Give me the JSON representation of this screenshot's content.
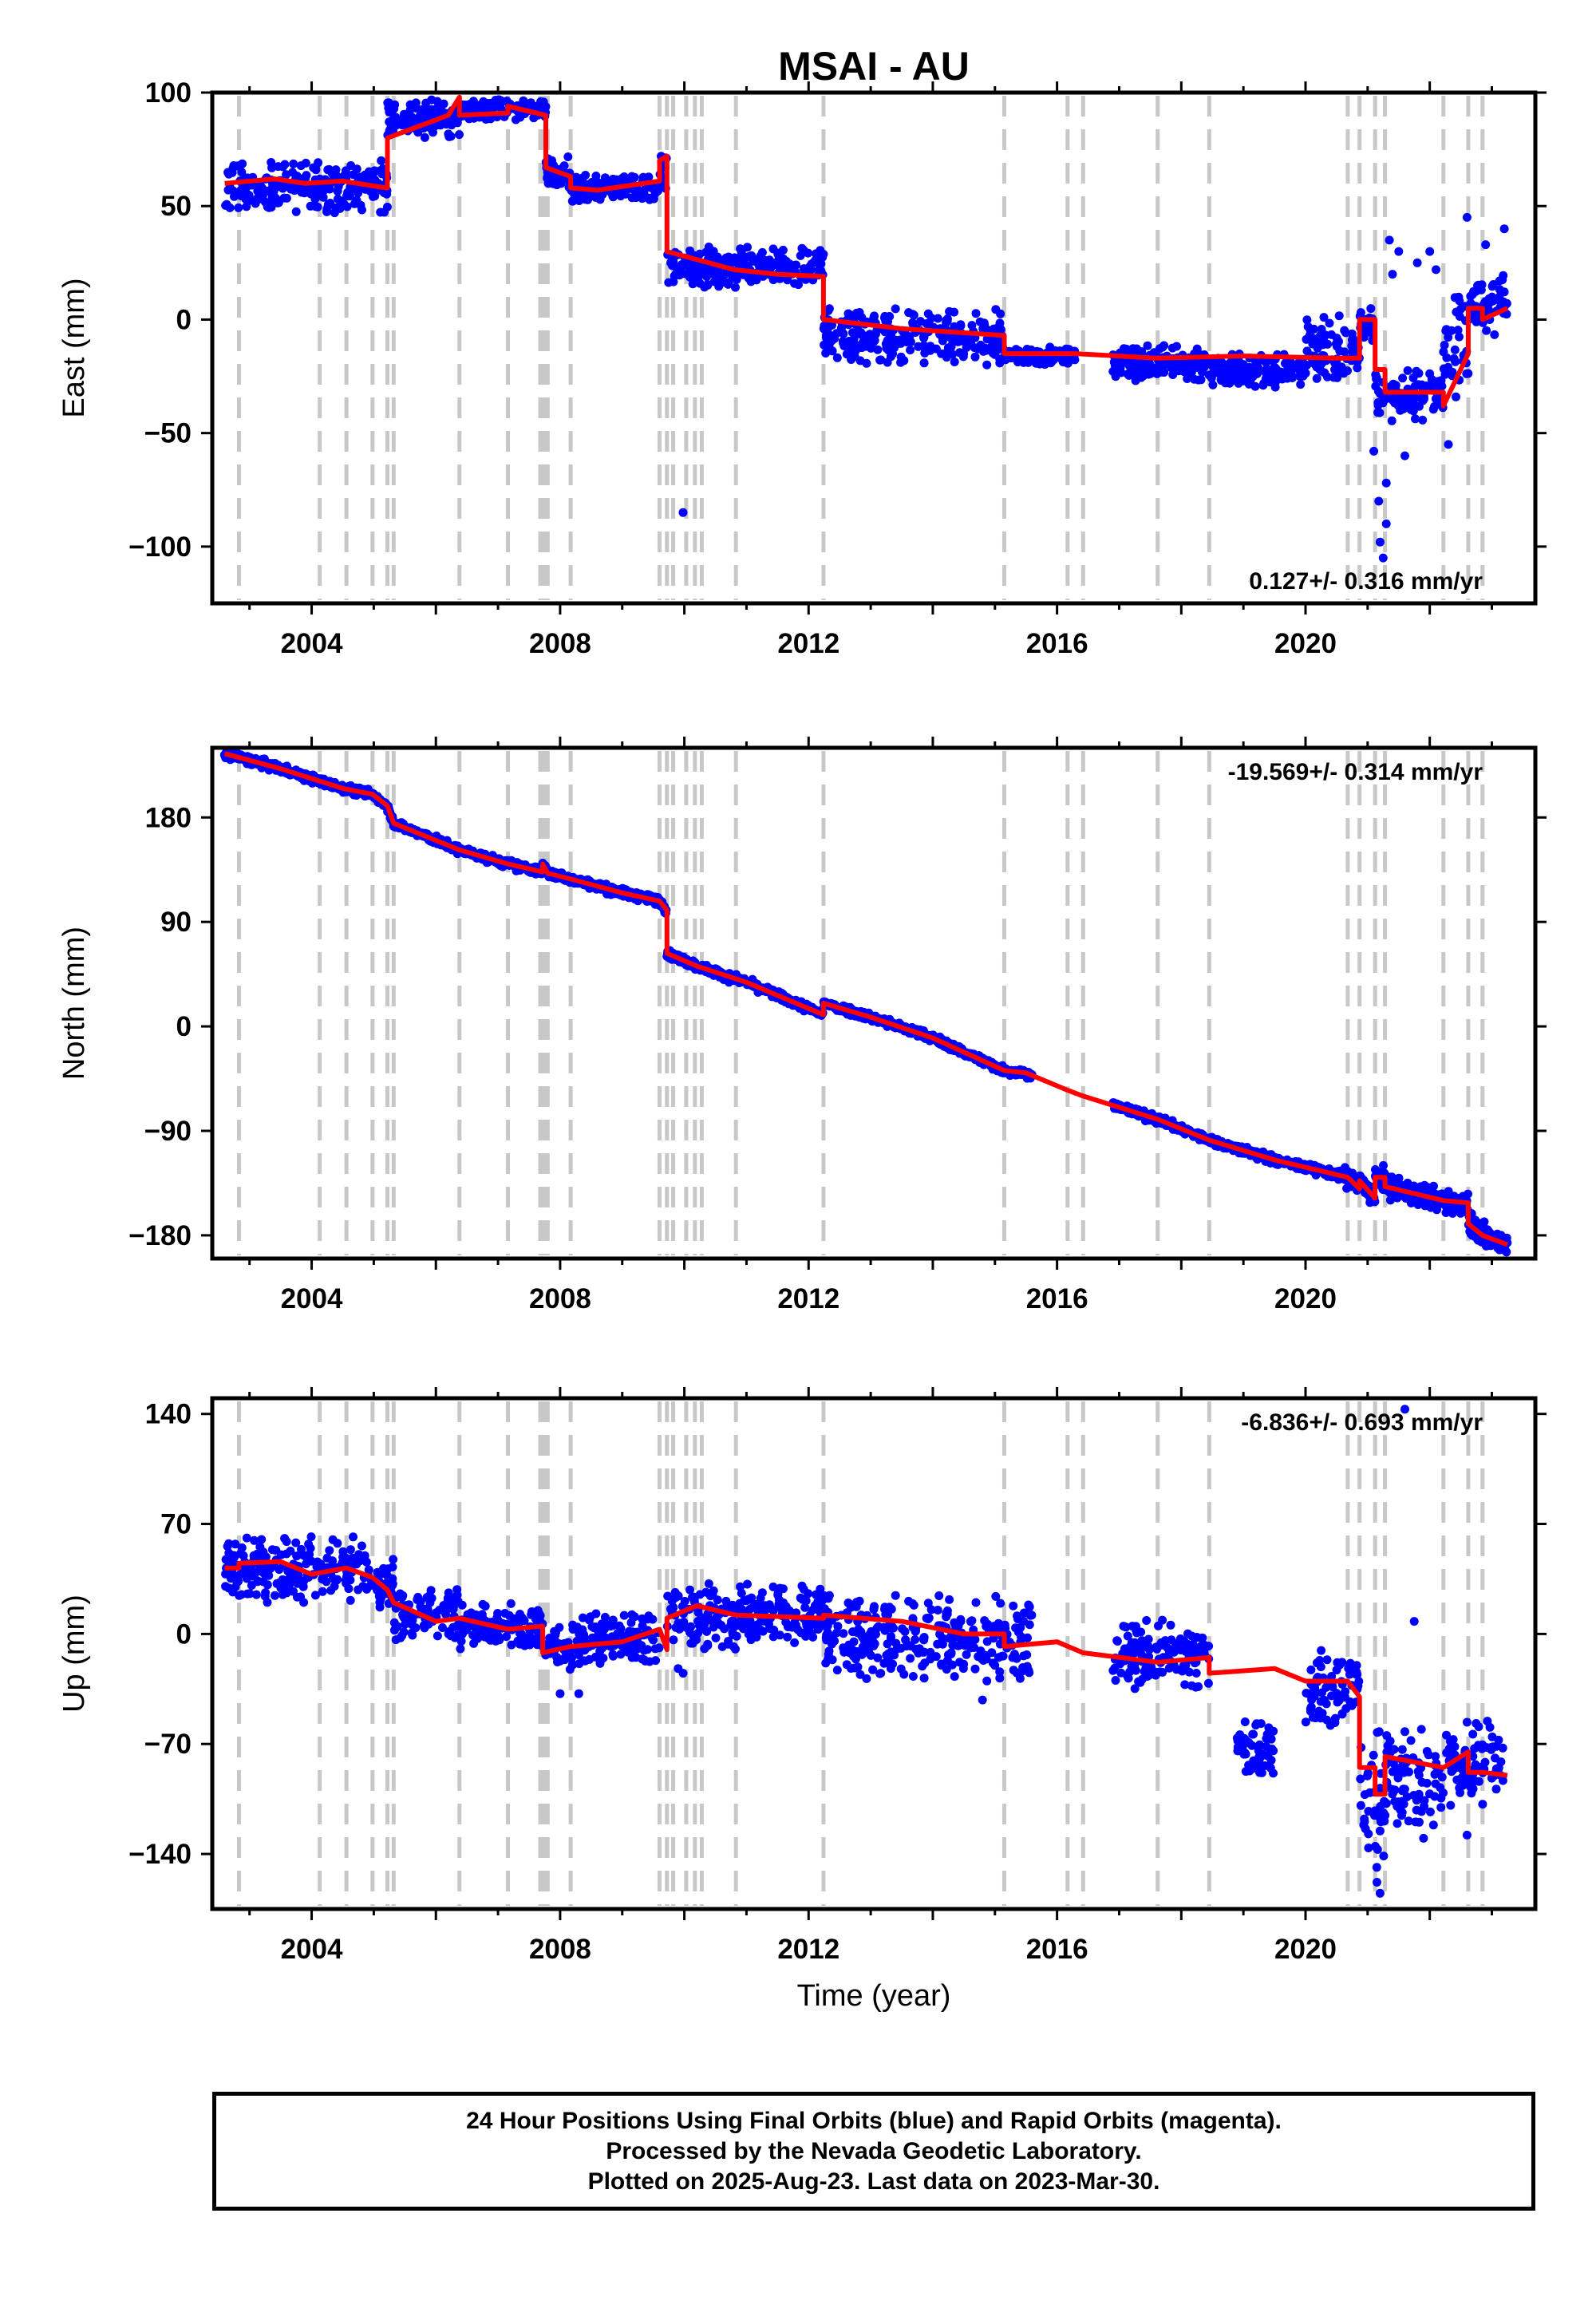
{
  "chart_data": {
    "type": "scatter",
    "title": "MSAI - AU",
    "xlabel": "Time (year)",
    "x_tick_labels": [
      "2004",
      "2008",
      "2012",
      "2016",
      "2020"
    ],
    "xlim": [
      2002.4,
      2023.7
    ],
    "time_span": [
      2002.6,
      2023.25
    ],
    "event_lines": [
      2002.83,
      2004.13,
      2004.56,
      2004.98,
      2005.22,
      2005.32,
      2006.38,
      2007.16,
      2007.68,
      2007.72,
      2007.77,
      2007.8,
      2008.17,
      2009.6,
      2009.72,
      2009.82,
      2010.03,
      2010.17,
      2010.28,
      2010.83,
      2012.24,
      2015.15,
      2016.17,
      2016.42,
      2017.62,
      2018.45,
      2020.68,
      2020.87,
      2021.12,
      2021.28,
      2022.22,
      2022.62,
      2022.85
    ],
    "colors": {
      "final_orbits": "#0000ff",
      "model": "#ff0000",
      "event_line": "#c8c8c8",
      "frame": "#000000"
    },
    "panels": [
      {
        "id": "east",
        "ylabel": "East (mm)",
        "ylim": [
          -125,
          100
        ],
        "ytick_values": [
          100,
          50,
          0,
          -50,
          -100
        ],
        "ytick_labels": [
          "100",
          "50",
          "0",
          "−50",
          "−100"
        ],
        "rate_label": "0.127+/- 0.316 mm/yr",
        "rate_position": "bottom-right",
        "model_line": [
          [
            2002.6,
            60
          ],
          [
            2003.4,
            62
          ],
          [
            2003.9,
            60
          ],
          [
            2004.5,
            61
          ],
          [
            2005.2,
            58
          ],
          [
            2005.22,
            58
          ],
          [
            2005.22,
            80
          ],
          [
            2006.2,
            90
          ],
          [
            2006.38,
            98
          ],
          [
            2006.38,
            90
          ],
          [
            2007.16,
            91
          ],
          [
            2007.16,
            94
          ],
          [
            2007.77,
            90
          ],
          [
            2007.77,
            67
          ],
          [
            2008.17,
            63
          ],
          [
            2008.17,
            58
          ],
          [
            2008.6,
            57
          ],
          [
            2009.6,
            61
          ],
          [
            2009.6,
            70
          ],
          [
            2009.72,
            72
          ],
          [
            2009.72,
            30
          ],
          [
            2010.8,
            22
          ],
          [
            2011.5,
            20
          ],
          [
            2012.24,
            19
          ],
          [
            2012.24,
            0
          ],
          [
            2013.5,
            -4
          ],
          [
            2015.15,
            -7
          ],
          [
            2015.15,
            -15
          ],
          [
            2016.3,
            -15
          ],
          [
            2017.6,
            -17
          ],
          [
            2019.0,
            -16
          ],
          [
            2020.5,
            -17
          ],
          [
            2020.87,
            -17
          ],
          [
            2020.87,
            0
          ],
          [
            2021.12,
            0
          ],
          [
            2021.12,
            -22
          ],
          [
            2021.28,
            -22
          ],
          [
            2021.28,
            -32
          ],
          [
            2022.22,
            -32
          ],
          [
            2022.22,
            -38
          ],
          [
            2022.62,
            -15
          ],
          [
            2022.62,
            5
          ],
          [
            2022.85,
            5
          ],
          [
            2022.85,
            0
          ],
          [
            2023.25,
            5
          ]
        ],
        "scatter_ranges": [
          [
            2002.6,
            2005.22,
            47,
            70
          ],
          [
            2005.22,
            2006.38,
            80,
            97
          ],
          [
            2006.38,
            2007.77,
            88,
            97
          ],
          [
            2007.77,
            2008.17,
            58,
            72
          ],
          [
            2008.17,
            2009.6,
            52,
            64
          ],
          [
            2009.6,
            2009.72,
            56,
            74
          ],
          [
            2009.72,
            2012.24,
            14,
            32
          ],
          [
            2012.24,
            2015.15,
            -20,
            5
          ],
          [
            2015.15,
            2016.3,
            -20,
            -12
          ],
          [
            2016.9,
            2018.5,
            -27,
            -11
          ],
          [
            2018.5,
            2020.0,
            -30,
            -15
          ],
          [
            2020.0,
            2020.87,
            -28,
            2
          ],
          [
            2020.87,
            2021.12,
            -10,
            5
          ],
          [
            2021.12,
            2021.28,
            -45,
            -20
          ],
          [
            2021.28,
            2022.22,
            -45,
            -22
          ],
          [
            2022.22,
            2022.62,
            -35,
            10
          ],
          [
            2022.62,
            2023.25,
            -8,
            20
          ]
        ],
        "outliers": [
          [
            2009.98,
            -85
          ],
          [
            2021.2,
            -98
          ],
          [
            2021.25,
            -105
          ],
          [
            2021.3,
            -90
          ],
          [
            2021.18,
            -80
          ],
          [
            2021.4,
            20
          ],
          [
            2021.5,
            30
          ],
          [
            2021.35,
            35
          ],
          [
            2021.8,
            25
          ],
          [
            2022.0,
            30
          ],
          [
            2022.6,
            45
          ],
          [
            2023.2,
            40
          ],
          [
            2022.9,
            33
          ],
          [
            2021.6,
            -60
          ],
          [
            2021.1,
            -58
          ],
          [
            2021.3,
            -72
          ],
          [
            2022.3,
            -55
          ],
          [
            2022.1,
            22
          ]
        ]
      },
      {
        "id": "north",
        "ylabel": "North (mm)",
        "ylim": [
          -200,
          240
        ],
        "ytick_values": [
          180,
          90,
          0,
          -90,
          -180
        ],
        "ytick_labels": [
          "180",
          "90",
          "0",
          "−90",
          "−180"
        ],
        "rate_label": "-19.569+/- 0.314 mm/yr",
        "rate_position": "top-right",
        "model_line": [
          [
            2002.6,
            235
          ],
          [
            2003.5,
            222
          ],
          [
            2004.5,
            205
          ],
          [
            2004.98,
            200
          ],
          [
            2005.22,
            190
          ],
          [
            2005.32,
            175
          ],
          [
            2006.38,
            152
          ],
          [
            2007.16,
            140
          ],
          [
            2007.72,
            133
          ],
          [
            2007.72,
            140
          ],
          [
            2007.8,
            132
          ],
          [
            2008.17,
            127
          ],
          [
            2009.0,
            115
          ],
          [
            2009.6,
            108
          ],
          [
            2009.72,
            100
          ],
          [
            2009.72,
            63
          ],
          [
            2010.2,
            52
          ],
          [
            2011.0,
            38
          ],
          [
            2012.24,
            10
          ],
          [
            2012.24,
            20
          ],
          [
            2013.0,
            8
          ],
          [
            2014.0,
            -10
          ],
          [
            2015.15,
            -38
          ],
          [
            2015.5,
            -40
          ],
          [
            2016.17,
            -55
          ],
          [
            2016.42,
            -60
          ],
          [
            2017.62,
            -80
          ],
          [
            2018.45,
            -98
          ],
          [
            2019.5,
            -115
          ],
          [
            2020.68,
            -130
          ],
          [
            2020.87,
            -140
          ],
          [
            2020.87,
            -133
          ],
          [
            2021.12,
            -148
          ],
          [
            2021.12,
            -130
          ],
          [
            2021.28,
            -130
          ],
          [
            2021.28,
            -138
          ],
          [
            2022.22,
            -150
          ],
          [
            2022.62,
            -152
          ],
          [
            2022.62,
            -170
          ],
          [
            2022.85,
            -180
          ],
          [
            2023.25,
            -188
          ]
        ],
        "scatter_band": 6,
        "scatter_spread_late": 16
      },
      {
        "id": "up",
        "ylabel": "Up (mm)",
        "ylim": [
          -175,
          150
        ],
        "ytick_values": [
          140,
          70,
          0,
          -70,
          -140
        ],
        "ytick_labels": [
          "140",
          "70",
          "0",
          "−70",
          "−140"
        ],
        "rate_label": "-6.836+/- 0.693 mm/yr",
        "rate_position": "top-right",
        "model_line": [
          [
            2002.6,
            42
          ],
          [
            2002.83,
            42
          ],
          [
            2002.83,
            45
          ],
          [
            2003.5,
            46
          ],
          [
            2004.0,
            38
          ],
          [
            2004.56,
            42
          ],
          [
            2004.98,
            36
          ],
          [
            2005.22,
            28
          ],
          [
            2005.32,
            20
          ],
          [
            2006.0,
            8
          ],
          [
            2006.38,
            10
          ],
          [
            2007.16,
            3
          ],
          [
            2007.72,
            5
          ],
          [
            2007.72,
            -12
          ],
          [
            2008.17,
            -8
          ],
          [
            2009.0,
            -5
          ],
          [
            2009.6,
            3
          ],
          [
            2009.72,
            -10
          ],
          [
            2009.72,
            10
          ],
          [
            2010.2,
            18
          ],
          [
            2010.83,
            12
          ],
          [
            2012.24,
            10
          ],
          [
            2012.24,
            12
          ],
          [
            2013.5,
            8
          ],
          [
            2014.5,
            0
          ],
          [
            2015.15,
            0
          ],
          [
            2015.15,
            -8
          ],
          [
            2016.0,
            -5
          ],
          [
            2016.42,
            -12
          ],
          [
            2017.62,
            -18
          ],
          [
            2018.45,
            -15
          ],
          [
            2018.45,
            -25
          ],
          [
            2019.5,
            -22
          ],
          [
            2020.0,
            -30
          ],
          [
            2020.68,
            -30
          ],
          [
            2020.87,
            -40
          ],
          [
            2020.87,
            -85
          ],
          [
            2021.12,
            -85
          ],
          [
            2021.12,
            -102
          ],
          [
            2021.28,
            -102
          ],
          [
            2021.28,
            -78
          ],
          [
            2022.22,
            -85
          ],
          [
            2022.62,
            -75
          ],
          [
            2022.62,
            -88
          ],
          [
            2022.85,
            -88
          ],
          [
            2023.25,
            -90
          ]
        ],
        "scatter_ranges": [
          [
            2002.6,
            2004.98,
            20,
            62
          ],
          [
            2004.98,
            2005.32,
            15,
            50
          ],
          [
            2005.32,
            2006.38,
            -5,
            30
          ],
          [
            2006.38,
            2007.72,
            -10,
            20
          ],
          [
            2007.72,
            2008.17,
            -25,
            5
          ],
          [
            2008.17,
            2009.6,
            -20,
            15
          ],
          [
            2009.72,
            2012.24,
            -10,
            32
          ],
          [
            2012.24,
            2015.15,
            -30,
            25
          ],
          [
            2015.15,
            2015.6,
            -30,
            25
          ],
          [
            2016.9,
            2018.45,
            -35,
            10
          ],
          [
            2018.9,
            2019.5,
            -95,
            -55
          ],
          [
            2020.0,
            2020.87,
            -60,
            -10
          ],
          [
            2020.87,
            2021.28,
            -150,
            -60
          ],
          [
            2021.28,
            2022.22,
            -125,
            -60
          ],
          [
            2022.22,
            2023.2,
            -110,
            -55
          ]
        ],
        "outliers": [
          [
            2021.6,
            143
          ],
          [
            2021.75,
            8
          ],
          [
            2021.2,
            -165
          ],
          [
            2021.15,
            -158
          ],
          [
            2008.3,
            -38
          ],
          [
            2008.0,
            -38
          ],
          [
            2009.9,
            -22
          ],
          [
            2014.8,
            -42
          ],
          [
            2022.6,
            -128
          ],
          [
            2021.9,
            -130
          ],
          [
            2009.98,
            -25
          ]
        ]
      }
    ],
    "footer_lines": [
      "24 Hour Positions Using Final Orbits (blue) and Rapid Orbits (magenta).",
      "Processed by the Nevada Geodetic Laboratory.",
      "Plotted on 2025-Aug-23. Last data on 2023-Mar-30."
    ]
  }
}
